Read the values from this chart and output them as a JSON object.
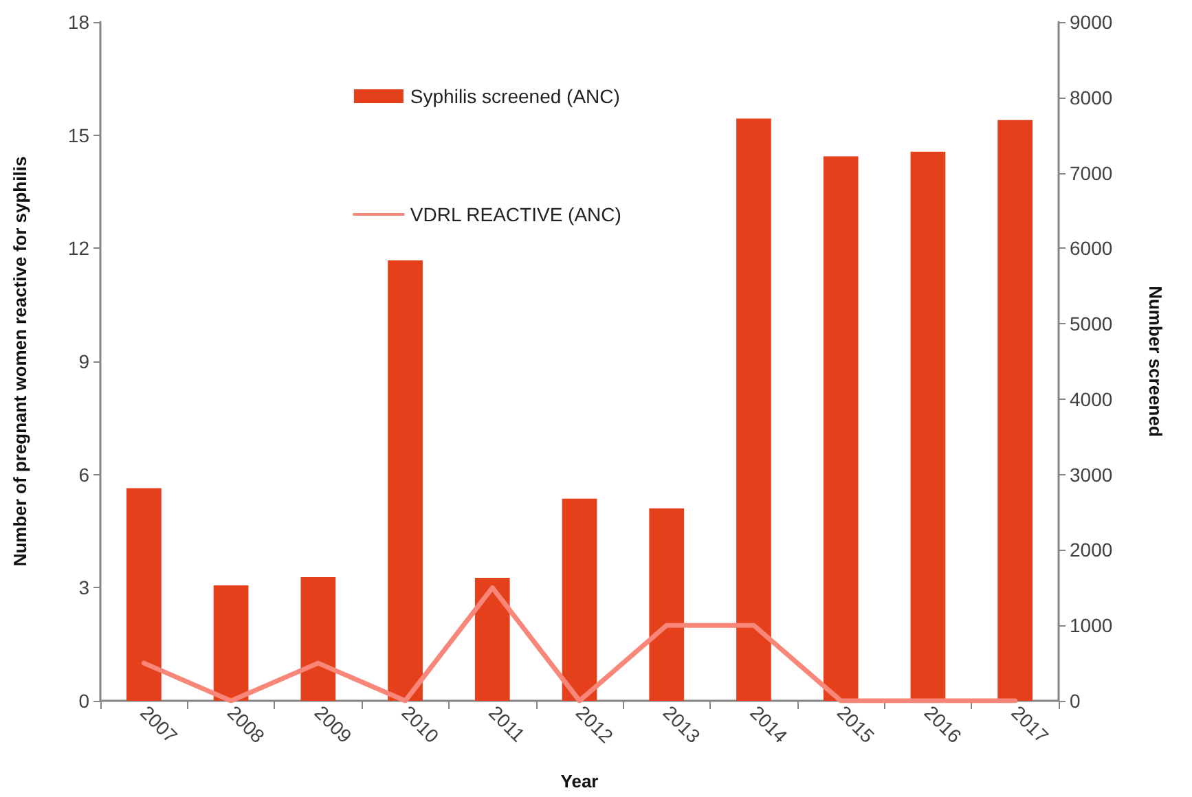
{
  "chart_data": {
    "type": "bar",
    "xlabel": "Year",
    "ylabel": "Number of pregnant women reactive for syphilis",
    "y2label": "Number screened",
    "categories": [
      "2007",
      "2008",
      "2009",
      "2010",
      "2011",
      "2012",
      "2013",
      "2014",
      "2015",
      "2016",
      "2017"
    ],
    "series": [
      {
        "name": "Syphilis screened (ANC)",
        "axis": "y2",
        "color": "#e3401b",
        "values": [
          2820,
          1530,
          1640,
          5840,
          1630,
          2680,
          2550,
          7720,
          7220,
          7280,
          7700
        ]
      },
      {
        "name": "VDRL REACTIVE (ANC)",
        "type": "line",
        "color": "#f8877a",
        "values": [
          1,
          0,
          1,
          0,
          3,
          0,
          2,
          2,
          0,
          0,
          0
        ]
      }
    ],
    "ylim": [
      0,
      18
    ],
    "yticks": [
      0,
      3,
      6,
      9,
      12,
      15,
      18
    ],
    "y2lim": [
      0,
      9000
    ],
    "y2ticks": [
      0,
      1000,
      2000,
      3000,
      4000,
      5000,
      6000,
      7000,
      8000,
      9000
    ],
    "grid": false,
    "legend": "top",
    "marker": "none",
    "line_style": "solid"
  }
}
